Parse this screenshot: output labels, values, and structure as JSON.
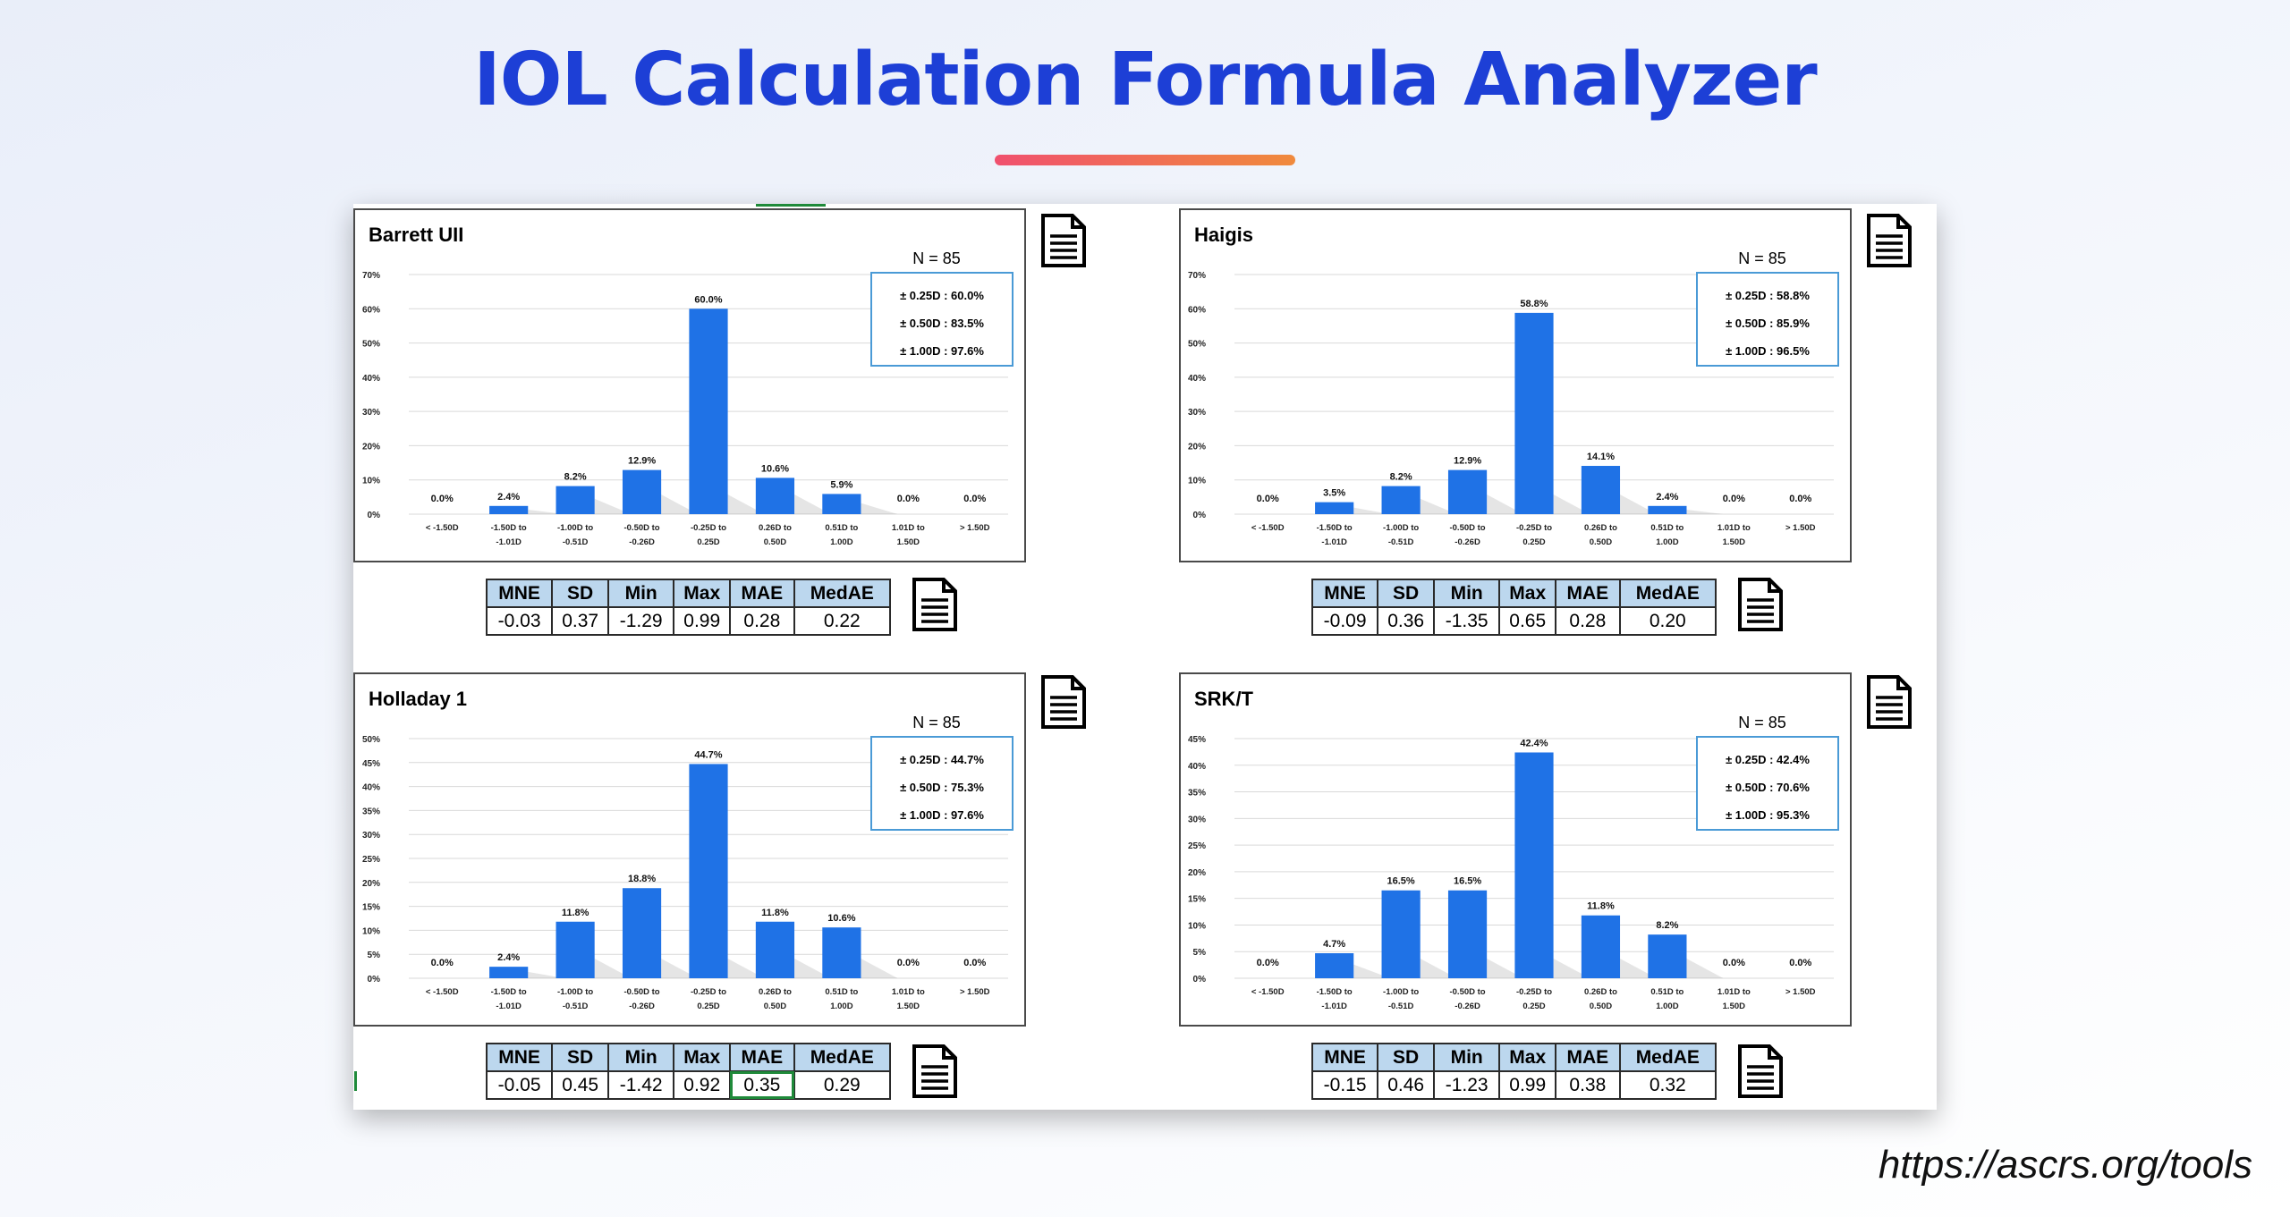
{
  "page": {
    "title": "IOL Calculation Formula Analyzer",
    "footer_url": "https://ascrs.org/tools"
  },
  "colors": {
    "bar": "#1f72e6",
    "title": "#1d3fd6",
    "accent_start": "#f0506e",
    "accent_end": "#f08a3c",
    "summary_border": "#4a9ad6",
    "table_header": "#bcd7ee"
  },
  "icons": {
    "panel_document": "document-icon",
    "table_document": "document-icon"
  },
  "stats_headers": [
    "MNE",
    "SD",
    "Min",
    "Max",
    "MAE",
    "MedAE"
  ],
  "chart_data": [
    {
      "type": "bar",
      "title": "Barrett UII",
      "n_label": "N = 85",
      "summary": [
        "± 0.25D : 60.0%",
        "± 0.50D : 83.5%",
        "± 1.00D : 97.6%"
      ],
      "categories": [
        [
          "< -1.50D"
        ],
        [
          "-1.50D to",
          "-1.01D"
        ],
        [
          "-1.00D to",
          "-0.51D"
        ],
        [
          "-0.50D to",
          "-0.26D"
        ],
        [
          "-0.25D to",
          "0.25D"
        ],
        [
          "0.26D to",
          "0.50D"
        ],
        [
          "0.51D to",
          "1.00D"
        ],
        [
          "1.01D to",
          "1.50D"
        ],
        [
          "> 1.50D"
        ]
      ],
      "values": [
        0.0,
        2.4,
        8.2,
        12.9,
        60.0,
        10.6,
        5.9,
        0.0,
        0.0
      ],
      "value_labels": [
        "0.0%",
        "2.4%",
        "8.2%",
        "12.9%",
        "60.0%",
        "10.6%",
        "5.9%",
        "0.0%",
        "0.0%"
      ],
      "yticks": [
        0,
        10,
        20,
        30,
        40,
        50,
        60,
        70
      ],
      "ytick_labels": [
        "0%",
        "10%",
        "20%",
        "30%",
        "40%",
        "50%",
        "60%",
        "70%"
      ],
      "ylim": [
        0,
        70
      ],
      "grid": true,
      "stats": [
        "-0.03",
        "0.37",
        "-1.29",
        "0.99",
        "0.28",
        "0.22"
      ]
    },
    {
      "type": "bar",
      "title": "Haigis",
      "n_label": "N = 85",
      "summary": [
        "± 0.25D : 58.8%",
        "± 0.50D : 85.9%",
        "± 1.00D : 96.5%"
      ],
      "categories": [
        [
          "< -1.50D"
        ],
        [
          "-1.50D to",
          "-1.01D"
        ],
        [
          "-1.00D to",
          "-0.51D"
        ],
        [
          "-0.50D to",
          "-0.26D"
        ],
        [
          "-0.25D to",
          "0.25D"
        ],
        [
          "0.26D to",
          "0.50D"
        ],
        [
          "0.51D to",
          "1.00D"
        ],
        [
          "1.01D to",
          "1.50D"
        ],
        [
          "> 1.50D"
        ]
      ],
      "values": [
        0.0,
        3.5,
        8.2,
        12.9,
        58.8,
        14.1,
        2.4,
        0.0,
        0.0
      ],
      "value_labels": [
        "0.0%",
        "3.5%",
        "8.2%",
        "12.9%",
        "58.8%",
        "14.1%",
        "2.4%",
        "0.0%",
        "0.0%"
      ],
      "yticks": [
        0,
        10,
        20,
        30,
        40,
        50,
        60,
        70
      ],
      "ytick_labels": [
        "0%",
        "10%",
        "20%",
        "30%",
        "40%",
        "50%",
        "60%",
        "70%"
      ],
      "ylim": [
        0,
        70
      ],
      "grid": true,
      "stats": [
        "-0.09",
        "0.36",
        "-1.35",
        "0.65",
        "0.28",
        "0.20"
      ]
    },
    {
      "type": "bar",
      "title": "Holladay 1",
      "n_label": "N = 85",
      "summary": [
        "± 0.25D : 44.7%",
        "± 0.50D : 75.3%",
        "± 1.00D : 97.6%"
      ],
      "categories": [
        [
          "< -1.50D"
        ],
        [
          "-1.50D to",
          "-1.01D"
        ],
        [
          "-1.00D to",
          "-0.51D"
        ],
        [
          "-0.50D to",
          "-0.26D"
        ],
        [
          "-0.25D to",
          "0.25D"
        ],
        [
          "0.26D to",
          "0.50D"
        ],
        [
          "0.51D to",
          "1.00D"
        ],
        [
          "1.01D to",
          "1.50D"
        ],
        [
          "> 1.50D"
        ]
      ],
      "values": [
        0.0,
        2.4,
        11.8,
        18.8,
        44.7,
        11.8,
        10.6,
        0.0,
        0.0
      ],
      "value_labels": [
        "0.0%",
        "2.4%",
        "11.8%",
        "18.8%",
        "44.7%",
        "11.8%",
        "10.6%",
        "0.0%",
        "0.0%"
      ],
      "yticks": [
        0,
        5,
        10,
        15,
        20,
        25,
        30,
        35,
        40,
        45,
        50
      ],
      "ytick_labels": [
        "0%",
        "5%",
        "10%",
        "15%",
        "20%",
        "25%",
        "30%",
        "35%",
        "40%",
        "45%",
        "50%"
      ],
      "ylim": [
        0,
        50
      ],
      "grid": true,
      "stats": [
        "-0.05",
        "0.45",
        "-1.42",
        "0.92",
        "0.35",
        "0.29"
      ]
    },
    {
      "type": "bar",
      "title": "SRK/T",
      "n_label": "N = 85",
      "summary": [
        "± 0.25D : 42.4%",
        "± 0.50D : 70.6%",
        "± 1.00D : 95.3%"
      ],
      "categories": [
        [
          "< -1.50D"
        ],
        [
          "-1.50D to",
          "-1.01D"
        ],
        [
          "-1.00D to",
          "-0.51D"
        ],
        [
          "-0.50D to",
          "-0.26D"
        ],
        [
          "-0.25D to",
          "0.25D"
        ],
        [
          "0.26D to",
          "0.50D"
        ],
        [
          "0.51D to",
          "1.00D"
        ],
        [
          "1.01D to",
          "1.50D"
        ],
        [
          "> 1.50D"
        ]
      ],
      "values": [
        0.0,
        4.7,
        16.5,
        16.5,
        42.4,
        11.8,
        8.2,
        0.0,
        0.0
      ],
      "value_labels": [
        "0.0%",
        "4.7%",
        "16.5%",
        "16.5%",
        "42.4%",
        "11.8%",
        "8.2%",
        "0.0%",
        "0.0%"
      ],
      "yticks": [
        0,
        5,
        10,
        15,
        20,
        25,
        30,
        35,
        40,
        45
      ],
      "ytick_labels": [
        "0%",
        "5%",
        "10%",
        "15%",
        "20%",
        "25%",
        "30%",
        "35%",
        "40%",
        "45%"
      ],
      "ylim": [
        0,
        45
      ],
      "grid": true,
      "stats": [
        "-0.15",
        "0.46",
        "-1.23",
        "0.99",
        "0.38",
        "0.32"
      ]
    }
  ]
}
